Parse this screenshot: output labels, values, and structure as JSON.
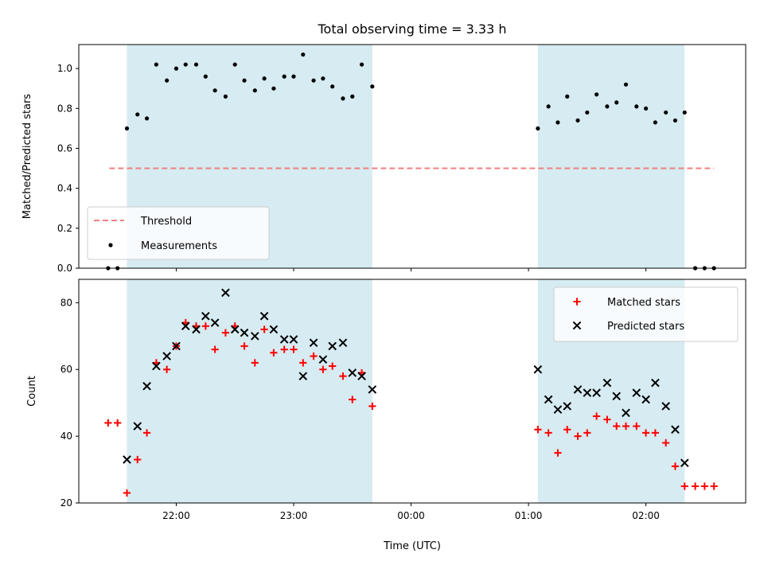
{
  "chart_data": {
    "type": "scatter",
    "title": "Total observing time = 3.33 h",
    "xlabel": "Time (UTC)",
    "x_unit": "hours UTC",
    "x_ticks": [
      {
        "value": 22.0,
        "label": "22:00"
      },
      {
        "value": 23.0,
        "label": "23:00"
      },
      {
        "value": 24.0,
        "label": "00:00"
      },
      {
        "value": 25.0,
        "label": "01:00"
      },
      {
        "value": 26.0,
        "label": "02:00"
      }
    ],
    "xlim": [
      21.17,
      26.85
    ],
    "observing_windows": [
      {
        "start": 21.58,
        "end": 23.67
      },
      {
        "start": 25.08,
        "end": 26.33
      }
    ],
    "panels": [
      {
        "id": "ratio",
        "ylabel": "Matched/Predicted stars",
        "ylim": [
          0.0,
          1.12
        ],
        "y_ticks": [
          0.0,
          0.2,
          0.4,
          0.6,
          0.8,
          1.0
        ],
        "threshold": {
          "name": "Threshold",
          "value": 0.5,
          "x_start": 21.43,
          "x_end": 26.58,
          "color": "#f08080"
        },
        "legend": {
          "location": "lower-left",
          "entries": [
            "Threshold",
            "Measurements"
          ]
        },
        "series": [
          {
            "name": "Measurements",
            "marker": "dot",
            "color": "#000000",
            "x": [
              21.42,
              21.5,
              21.58,
              21.67,
              21.75,
              21.83,
              21.92,
              22.0,
              22.08,
              22.17,
              22.25,
              22.33,
              22.42,
              22.5,
              22.58,
              22.67,
              22.75,
              22.83,
              22.92,
              23.0,
              23.08,
              23.17,
              23.25,
              23.33,
              23.42,
              23.5,
              23.58,
              23.67,
              25.08,
              25.17,
              25.25,
              25.33,
              25.42,
              25.5,
              25.58,
              25.67,
              25.75,
              25.83,
              25.92,
              26.0,
              26.08,
              26.17,
              26.25,
              26.33,
              26.42,
              26.5,
              26.58
            ],
            "y": [
              0.0,
              0.0,
              0.7,
              0.77,
              0.75,
              1.02,
              0.94,
              1.0,
              1.02,
              1.02,
              0.96,
              0.89,
              0.86,
              1.02,
              0.94,
              0.89,
              0.95,
              0.9,
              0.96,
              0.96,
              1.07,
              0.94,
              0.95,
              0.91,
              0.85,
              0.86,
              1.02,
              0.91,
              0.7,
              0.81,
              0.73,
              0.86,
              0.74,
              0.78,
              0.87,
              0.81,
              0.83,
              0.92,
              0.81,
              0.8,
              0.73,
              0.78,
              0.74,
              0.78,
              0.0,
              0.0,
              0.0
            ]
          }
        ]
      },
      {
        "id": "count",
        "ylabel": "Count",
        "ylim": [
          20,
          87
        ],
        "y_ticks": [
          20,
          40,
          60,
          80
        ],
        "legend": {
          "location": "upper-right",
          "entries": [
            "Matched stars",
            "Predicted stars"
          ]
        },
        "series": [
          {
            "name": "Matched stars",
            "marker": "plus",
            "color": "#ff0000",
            "x": [
              21.42,
              21.5,
              21.58,
              21.67,
              21.75,
              21.83,
              21.92,
              22.0,
              22.08,
              22.17,
              22.25,
              22.33,
              22.42,
              22.5,
              22.58,
              22.67,
              22.75,
              22.83,
              22.92,
              23.0,
              23.08,
              23.17,
              23.25,
              23.33,
              23.42,
              23.5,
              23.58,
              23.67,
              25.08,
              25.17,
              25.25,
              25.33,
              25.42,
              25.5,
              25.58,
              25.67,
              25.75,
              25.83,
              25.92,
              26.0,
              26.08,
              26.17,
              26.25,
              26.33,
              26.42,
              26.5,
              26.58
            ],
            "y": [
              44,
              44,
              23,
              33,
              41,
              62,
              60,
              67,
              74,
              73,
              73,
              66,
              71,
              73,
              67,
              62,
              72,
              65,
              66,
              66,
              62,
              64,
              60,
              61,
              58,
              51,
              59,
              49,
              42,
              41,
              35,
              42,
              40,
              41,
              46,
              45,
              43,
              43,
              43,
              41,
              41,
              38,
              31,
              25,
              25,
              25,
              25
            ]
          },
          {
            "name": "Predicted stars",
            "marker": "x",
            "color": "#000000",
            "x": [
              21.58,
              21.67,
              21.75,
              21.83,
              21.92,
              22.0,
              22.08,
              22.17,
              22.25,
              22.33,
              22.42,
              22.5,
              22.58,
              22.67,
              22.75,
              22.83,
              22.92,
              23.0,
              23.08,
              23.17,
              23.25,
              23.33,
              23.42,
              23.5,
              23.58,
              23.67,
              25.08,
              25.17,
              25.25,
              25.33,
              25.42,
              25.5,
              25.58,
              25.67,
              25.75,
              25.83,
              25.92,
              26.0,
              26.08,
              26.17,
              26.25,
              26.33
            ],
            "y": [
              33,
              43,
              55,
              61,
              64,
              67,
              73,
              72,
              76,
              74,
              83,
              72,
              71,
              70,
              76,
              72,
              69,
              69,
              58,
              68,
              63,
              67,
              68,
              59,
              58,
              54,
              60,
              51,
              48,
              49,
              54,
              53,
              53,
              56,
              52,
              47,
              53,
              51,
              56,
              49,
              42,
              32
            ]
          }
        ]
      }
    ]
  }
}
